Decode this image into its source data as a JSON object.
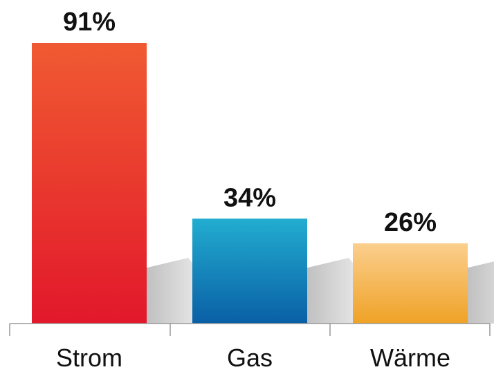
{
  "chart_data": {
    "type": "bar",
    "categories": [
      "Strom",
      "Gas",
      "Wärme"
    ],
    "values": [
      91,
      34,
      26
    ],
    "value_labels": [
      "91%",
      "34%",
      "26%"
    ],
    "unit": "%",
    "ylim": [
      0,
      100
    ],
    "grid": false,
    "legend": "none",
    "colors": [
      {
        "top": "#F05A32",
        "bottom": "#E2182B"
      },
      {
        "top": "#22ADD0",
        "bottom": "#0A5FA5"
      },
      {
        "top": "#FBCF8E",
        "bottom": "#EFA226"
      }
    ],
    "axis_color": "#999999",
    "shadow_color": "#BDBDBD"
  }
}
